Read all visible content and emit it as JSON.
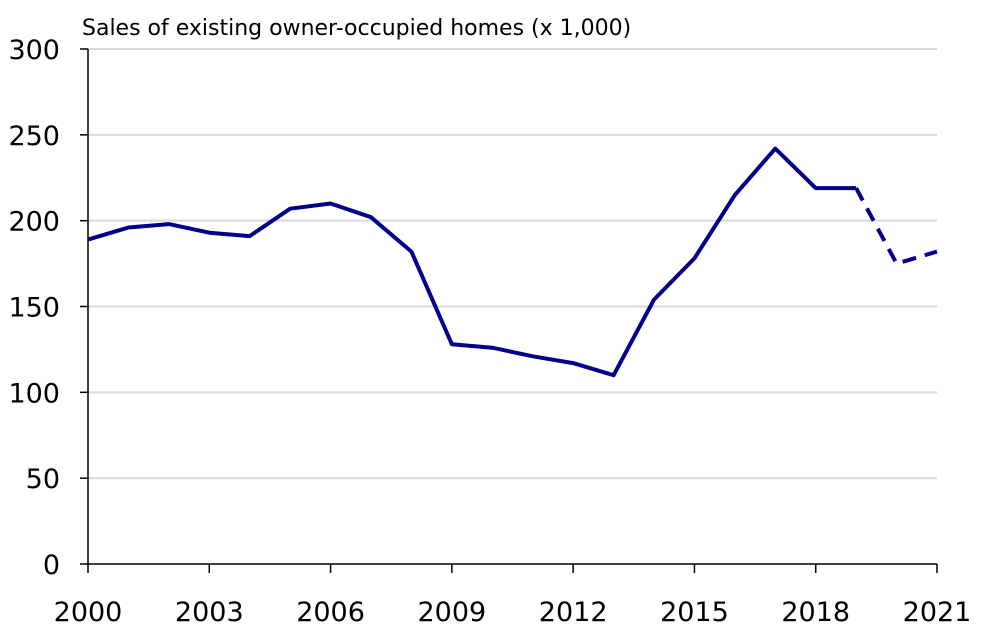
{
  "chart_data": {
    "type": "line",
    "title": "Sales of existing owner-occupied homes (x 1,000)",
    "xlabel": "",
    "ylabel": "",
    "xlim": [
      2000,
      2021
    ],
    "ylim": [
      0,
      300
    ],
    "x_ticks": [
      "2000",
      "2003",
      "2006",
      "2009",
      "2012",
      "2015",
      "2018",
      "2021"
    ],
    "y_ticks": [
      "0",
      "50",
      "100",
      "150",
      "200",
      "250",
      "300"
    ],
    "grid": true,
    "legend": "none",
    "line_color": "#00008B",
    "grid_color": "#D9D9D9",
    "series": [
      {
        "style": "solid",
        "x": [
          2000,
          2001,
          2002,
          2003,
          2004,
          2005,
          2006,
          2007,
          2008,
          2009,
          2010,
          2011,
          2012,
          2013,
          2014,
          2015,
          2016,
          2017,
          2018,
          2019
        ],
        "values": [
          189,
          196,
          198,
          193,
          191,
          207,
          210,
          202,
          182,
          128,
          126,
          121,
          117,
          110,
          154,
          178,
          215,
          242,
          219,
          219
        ]
      },
      {
        "style": "dashed",
        "x": [
          2019,
          2020,
          2021
        ],
        "values": [
          219,
          175,
          182
        ]
      }
    ]
  }
}
